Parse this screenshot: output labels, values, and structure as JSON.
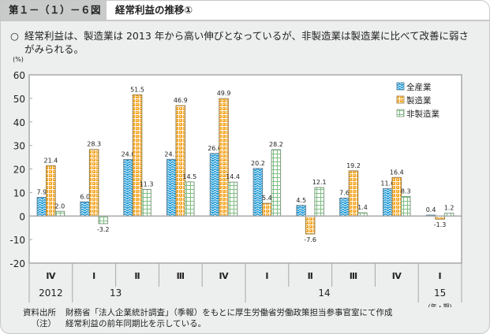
{
  "header": {
    "figure_number": "第１－（１）－６図",
    "figure_title": "経常利益の推移①"
  },
  "summary": {
    "bullet": "○",
    "line1": "経常利益は、製造業は 2013 年から高い伸びとなっているが、非製造業は製造業に比べて改善に弱さ",
    "line2": "がみられる。"
  },
  "notes": {
    "source_key": "資料出所",
    "source_text": "財務省「法人企業統計調査」（季報）をもとに厚生労働省労働政策担当参事官室にて作成",
    "note_key": "（注）",
    "note_text": "経常利益の前年同期比を示している。"
  },
  "colors": {
    "all_industries": "#1e9ad6",
    "manufacturing": "#f5a623",
    "non_manufacturing": "#9fd3a0",
    "frame_bg": "#edeeee"
  },
  "chart_data": {
    "type": "bar",
    "title": "経常利益の推移①",
    "ylabel": "(%)",
    "xlabel": "(年・期)",
    "ylim": [
      -20,
      60
    ],
    "yticks": [
      -20,
      -10,
      0,
      10,
      20,
      30,
      40,
      50,
      60
    ],
    "grid": false,
    "legend_position": "top-right",
    "categories": [
      "Ⅳ",
      "Ⅰ",
      "Ⅱ",
      "Ⅲ",
      "Ⅳ",
      "Ⅰ",
      "Ⅱ",
      "Ⅲ",
      "Ⅳ",
      "Ⅰ"
    ],
    "year_groups": [
      {
        "label": "2012",
        "start": 0,
        "end": 0
      },
      {
        "label": "13",
        "start": 1,
        "end": 4
      },
      {
        "label": "14",
        "start": 5,
        "end": 8
      },
      {
        "label": "15",
        "start": 9,
        "end": 9
      }
    ],
    "series": [
      {
        "name": "全産業",
        "values": [
          7.9,
          6.0,
          24.0,
          24.1,
          26.6,
          20.2,
          4.5,
          7.6,
          11.6,
          0.4
        ]
      },
      {
        "name": "製造業",
        "values": [
          21.4,
          28.3,
          51.5,
          46.9,
          49.9,
          5.4,
          -7.6,
          19.2,
          16.4,
          -1.3
        ]
      },
      {
        "name": "非製造業",
        "values": [
          2.0,
          -3.2,
          11.3,
          14.5,
          14.4,
          28.2,
          12.1,
          1.4,
          8.3,
          1.2
        ]
      }
    ]
  }
}
